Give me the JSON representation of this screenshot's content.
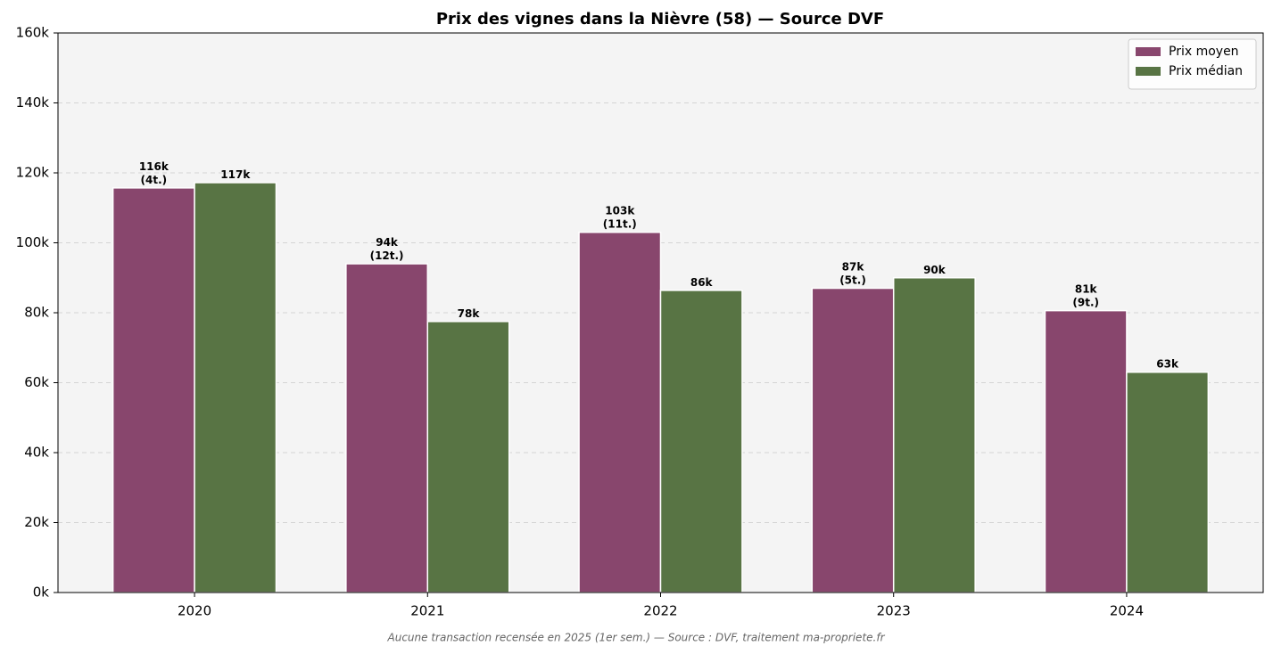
{
  "chart_data": {
    "type": "bar",
    "title": "Prix des vignes dans la Nièvre (58) — Source DVF",
    "note": "Aucune transaction recensée en 2025 (1er sem.) — Source : DVF, traitement ma-propriete.fr",
    "categories": [
      "2020",
      "2021",
      "2022",
      "2023",
      "2024"
    ],
    "series": [
      {
        "name": "Prix moyen",
        "color": "#88466d",
        "values": [
          115700,
          94000,
          103000,
          87000,
          80600
        ],
        "value_labels": [
          "116k\n(4t.)",
          "94k\n(12t.)",
          "103k\n(11t.)",
          "87k\n(5t.)",
          "81k\n(9t.)"
        ]
      },
      {
        "name": "Prix médian",
        "color": "#587444",
        "values": [
          117200,
          77500,
          86400,
          90000,
          63000
        ],
        "value_labels": [
          "117k",
          "78k",
          "86k",
          "90k",
          "63k"
        ]
      }
    ],
    "ylim": [
      0,
      160000
    ],
    "yticks": [
      {
        "value": 0,
        "label": "0k"
      },
      {
        "value": 20000,
        "label": "20k"
      },
      {
        "value": 40000,
        "label": "40k"
      },
      {
        "value": 60000,
        "label": "60k"
      },
      {
        "value": 80000,
        "label": "80k"
      },
      {
        "value": 100000,
        "label": "100k"
      },
      {
        "value": 120000,
        "label": "120k"
      },
      {
        "value": 140000,
        "label": "140k"
      },
      {
        "value": 160000,
        "label": "160k"
      }
    ],
    "grid": true,
    "legend": "upper right"
  }
}
